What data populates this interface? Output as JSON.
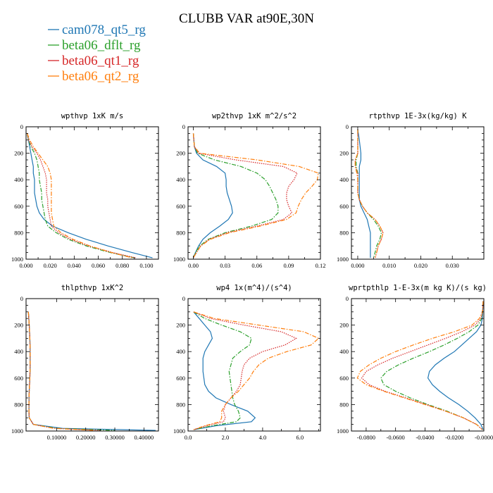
{
  "figure_title": "CLUBB VAR at90E,30N",
  "legend": [
    {
      "label": "cam078_qt5_rg",
      "color": "#1f77b4",
      "dash": "solid"
    },
    {
      "label": "beta06_dflt_rg",
      "color": "#2ca02c",
      "dash": "dashdot"
    },
    {
      "label": "beta06_qt1_rg",
      "color": "#d62728",
      "dash": "dot"
    },
    {
      "label": "beta06_qt2_rg",
      "color": "#ff7f0e",
      "dash": "dashdot"
    }
  ],
  "chart_data": [
    {
      "type": "line",
      "title": "wpthvp   1xK m/s",
      "xlim": [
        0,
        0.11
      ],
      "ylim": [
        1000,
        0
      ],
      "xticks": [
        "0.000",
        "0.020",
        "0.040",
        "0.060",
        "0.080",
        "0.100"
      ],
      "xtick_values": [
        0,
        0.02,
        0.04,
        0.06,
        0.08,
        0.1
      ],
      "yticks": [
        "0",
        "200",
        "400",
        "600",
        "800",
        "1000"
      ],
      "y": [
        50,
        100,
        150,
        200,
        250,
        300,
        350,
        400,
        450,
        500,
        550,
        600,
        650,
        700,
        750,
        800,
        850,
        900,
        950,
        990
      ],
      "series": [
        {
          "name": "cam078_qt5_rg",
          "x": [
            0.001,
            0.002,
            0.003,
            0.004,
            0.005,
            0.006,
            0.006,
            0.007,
            0.007,
            0.007,
            0.008,
            0.009,
            0.011,
            0.015,
            0.022,
            0.035,
            0.05,
            0.068,
            0.088,
            0.105
          ]
        },
        {
          "name": "beta06_dflt_rg",
          "x": [
            0.001,
            0.002,
            0.004,
            0.007,
            0.009,
            0.01,
            0.011,
            0.011,
            0.012,
            0.013,
            0.013,
            0.014,
            0.015,
            0.016,
            0.018,
            0.025,
            0.035,
            0.05,
            0.07,
            0.09
          ]
        },
        {
          "name": "beta06_qt1_rg",
          "x": [
            0.001,
            0.002,
            0.005,
            0.009,
            0.012,
            0.014,
            0.016,
            0.017,
            0.017,
            0.017,
            0.018,
            0.018,
            0.019,
            0.02,
            0.021,
            0.027,
            0.037,
            0.052,
            0.072,
            0.091
          ]
        },
        {
          "name": "beta06_qt2_rg",
          "x": [
            0.001,
            0.003,
            0.006,
            0.01,
            0.014,
            0.018,
            0.02,
            0.021,
            0.021,
            0.021,
            0.021,
            0.021,
            0.021,
            0.022,
            0.023,
            0.029,
            0.039,
            0.053,
            0.071,
            0.088
          ]
        }
      ]
    },
    {
      "type": "line",
      "title": "wp2thvp   1xK m^2/s^2",
      "xlim": [
        -0.005,
        0.12
      ],
      "ylim": [
        1000,
        0
      ],
      "xticks": [
        "0.00",
        "0.03",
        "0.06",
        "0.09",
        "0.12"
      ],
      "xtick_values": [
        0,
        0.03,
        0.06,
        0.09,
        0.12
      ],
      "yticks": [
        "0",
        "200",
        "400",
        "600",
        "800",
        "1000"
      ],
      "y": [
        50,
        150,
        200,
        250,
        300,
        350,
        400,
        450,
        500,
        550,
        600,
        650,
        700,
        750,
        800,
        850,
        900,
        950,
        990
      ],
      "series": [
        {
          "name": "cam078_qt5_rg",
          "x": [
            0.0,
            0.001,
            0.003,
            0.009,
            0.022,
            0.03,
            0.031,
            0.031,
            0.032,
            0.034,
            0.036,
            0.037,
            0.033,
            0.025,
            0.016,
            0.009,
            0.005,
            0.002,
            0.0
          ]
        },
        {
          "name": "beta06_dflt_rg",
          "x": [
            0.0,
            0.001,
            0.004,
            0.02,
            0.045,
            0.06,
            0.068,
            0.072,
            0.075,
            0.078,
            0.08,
            0.08,
            0.074,
            0.055,
            0.03,
            0.014,
            0.006,
            0.002,
            0.0
          ]
        },
        {
          "name": "beta06_qt1_rg",
          "x": [
            0.0,
            0.001,
            0.005,
            0.04,
            0.085,
            0.098,
            0.095,
            0.09,
            0.088,
            0.088,
            0.09,
            0.093,
            0.085,
            0.06,
            0.032,
            0.015,
            0.007,
            0.003,
            0.0
          ]
        },
        {
          "name": "beta06_qt2_rg",
          "x": [
            0.0,
            0.001,
            0.006,
            0.06,
            0.1,
            0.118,
            0.117,
            0.112,
            0.106,
            0.102,
            0.099,
            0.097,
            0.088,
            0.063,
            0.034,
            0.016,
            0.007,
            0.003,
            0.0
          ]
        }
      ]
    },
    {
      "type": "line",
      "title": "rtpthvp   1E-3x(kg/kg) K",
      "xlim": [
        -0.002,
        0.04
      ],
      "ylim": [
        1000,
        0
      ],
      "xticks": [
        "0.000",
        "0.010",
        "0.020",
        "0.030"
      ],
      "xtick_values": [
        0,
        0.01,
        0.02,
        0.03
      ],
      "yticks": [
        "0",
        "200",
        "400",
        "600",
        "800",
        "1000"
      ],
      "y": [
        20,
        100,
        200,
        250,
        300,
        350,
        400,
        450,
        500,
        550,
        600,
        650,
        700,
        750,
        800,
        850,
        900,
        950,
        990
      ],
      "series": [
        {
          "name": "cam078_qt5_rg",
          "x": [
            0.0,
            0.0005,
            0.001,
            0.001,
            0.0005,
            0.0005,
            0.0005,
            0.0005,
            0.0005,
            0.0005,
            0.001,
            0.002,
            0.003,
            0.0035,
            0.004,
            0.004,
            0.004,
            0.004,
            0.004
          ]
        },
        {
          "name": "beta06_dflt_rg",
          "x": [
            0.0,
            0.0,
            0.0,
            -0.0005,
            -0.0005,
            0.0,
            0.0,
            0.0,
            0.0,
            0.0005,
            0.0015,
            0.003,
            0.005,
            0.0065,
            0.0075,
            0.007,
            0.006,
            0.0055,
            0.005
          ]
        },
        {
          "name": "beta06_qt1_rg",
          "x": [
            0.0,
            0.0,
            0.0,
            -0.0008,
            -0.0008,
            0.0,
            0.0,
            0.0,
            0.0,
            0.0005,
            0.0015,
            0.003,
            0.0055,
            0.007,
            0.008,
            0.0075,
            0.0065,
            0.006,
            0.0055
          ]
        },
        {
          "name": "beta06_qt2_rg",
          "x": [
            0.0,
            0.0,
            0.0,
            -0.0008,
            -0.0008,
            -0.0003,
            0.0,
            0.0,
            0.0,
            0.0005,
            0.0015,
            0.003,
            0.0055,
            0.007,
            0.008,
            0.0075,
            0.0065,
            0.006,
            0.0055
          ]
        }
      ]
    },
    {
      "type": "line",
      "title": "thlpthvp   1xK^2",
      "xlim": [
        -0.005,
        0.45
      ],
      "ylim": [
        1000,
        0
      ],
      "xticks": [
        "0.10000",
        "0.20000",
        "0.30000",
        "0.40000"
      ],
      "xtick_values": [
        0.1,
        0.2,
        0.3,
        0.4
      ],
      "yticks": [
        "0",
        "200",
        "400",
        "600",
        "800",
        "1000"
      ],
      "y": [
        100,
        200,
        300,
        400,
        500,
        600,
        700,
        800,
        850,
        900,
        950,
        980,
        995
      ],
      "series": [
        {
          "name": "cam078_qt5_rg",
          "x": [
            0.003,
            0.006,
            0.008,
            0.009,
            0.009,
            0.008,
            0.006,
            0.005,
            0.005,
            0.006,
            0.02,
            0.12,
            0.44
          ]
        },
        {
          "name": "beta06_dflt_rg",
          "x": [
            0.003,
            0.006,
            0.008,
            0.009,
            0.009,
            0.008,
            0.006,
            0.005,
            0.005,
            0.006,
            0.02,
            0.1,
            0.3
          ]
        },
        {
          "name": "beta06_qt1_rg",
          "x": [
            0.003,
            0.006,
            0.008,
            0.009,
            0.009,
            0.008,
            0.006,
            0.005,
            0.005,
            0.006,
            0.02,
            0.09,
            0.25
          ]
        },
        {
          "name": "beta06_qt2_rg",
          "x": [
            0.003,
            0.006,
            0.008,
            0.009,
            0.009,
            0.008,
            0.006,
            0.005,
            0.005,
            0.006,
            0.02,
            0.09,
            0.23
          ]
        }
      ]
    },
    {
      "type": "line",
      "title": "wp4   1x(m^4)/(s^4)",
      "xlim": [
        0,
        7.1
      ],
      "ylim": [
        1000,
        0
      ],
      "xticks": [
        "0.0",
        "2.0",
        "4.0",
        "6.0"
      ],
      "xtick_values": [
        0,
        2,
        4,
        6
      ],
      "yticks": [
        "0",
        "200",
        "400",
        "600",
        "800",
        "1000"
      ],
      "y": [
        100,
        150,
        200,
        250,
        300,
        350,
        400,
        450,
        500,
        550,
        600,
        650,
        700,
        750,
        800,
        850,
        900,
        930,
        960,
        990
      ],
      "series": [
        {
          "name": "cam078_qt5_rg",
          "x": [
            0.3,
            0.6,
            0.9,
            1.2,
            1.3,
            1.1,
            0.9,
            0.8,
            0.8,
            0.8,
            0.85,
            0.9,
            1.1,
            1.5,
            2.3,
            3.2,
            3.6,
            3.4,
            1.5,
            0.3
          ]
        },
        {
          "name": "beta06_dflt_rg",
          "x": [
            0.3,
            0.9,
            1.8,
            2.8,
            3.4,
            3.3,
            2.8,
            2.4,
            2.3,
            2.2,
            2.25,
            2.3,
            2.35,
            2.4,
            2.5,
            2.7,
            2.8,
            2.6,
            1.3,
            0.3
          ]
        },
        {
          "name": "beta06_qt1_rg",
          "x": [
            0.3,
            1.2,
            3.0,
            5.0,
            5.8,
            5.2,
            4.0,
            3.3,
            3.0,
            2.9,
            2.85,
            2.8,
            2.6,
            2.3,
            2.0,
            1.9,
            2.0,
            1.9,
            1.0,
            0.3
          ]
        },
        {
          "name": "beta06_qt2_rg",
          "x": [
            0.3,
            1.4,
            3.8,
            6.2,
            7.0,
            6.6,
            5.3,
            4.3,
            3.8,
            3.5,
            3.3,
            3.0,
            2.7,
            2.3,
            2.0,
            1.8,
            1.8,
            1.7,
            0.9,
            0.3
          ]
        }
      ]
    },
    {
      "type": "line",
      "title": "wprtpthlp   1-E-3x(m kg K)/(s kg)",
      "xlim": [
        -0.09,
        0.0
      ],
      "ylim": [
        1000,
        0
      ],
      "xticks": [
        "-0.0800",
        "-0.0600",
        "-0.0400",
        "-0.0200",
        "-0.0000"
      ],
      "xtick_values": [
        -0.08,
        -0.06,
        -0.04,
        -0.02,
        0.0
      ],
      "yticks": [
        "0",
        "200",
        "400",
        "600",
        "800",
        "1000"
      ],
      "y": [
        20,
        100,
        150,
        200,
        250,
        300,
        350,
        400,
        450,
        500,
        550,
        600,
        650,
        700,
        750,
        800,
        850,
        900,
        950,
        990
      ],
      "series": [
        {
          "name": "cam078_qt5_rg",
          "x": [
            -0.0005,
            -0.0008,
            -0.001,
            -0.002,
            -0.005,
            -0.01,
            -0.015,
            -0.02,
            -0.027,
            -0.033,
            -0.037,
            -0.038,
            -0.035,
            -0.03,
            -0.024,
            -0.017,
            -0.011,
            -0.006,
            -0.002,
            -0.0005
          ]
        },
        {
          "name": "beta06_dflt_rg",
          "x": [
            -0.0005,
            -0.0008,
            -0.0015,
            -0.004,
            -0.01,
            -0.018,
            -0.027,
            -0.037,
            -0.048,
            -0.058,
            -0.066,
            -0.07,
            -0.068,
            -0.06,
            -0.05,
            -0.038,
            -0.025,
            -0.014,
            -0.005,
            -0.001
          ]
        },
        {
          "name": "beta06_qt1_rg",
          "x": [
            -0.0005,
            -0.0008,
            -0.002,
            -0.006,
            -0.015,
            -0.026,
            -0.038,
            -0.05,
            -0.062,
            -0.072,
            -0.08,
            -0.083,
            -0.078,
            -0.067,
            -0.053,
            -0.039,
            -0.026,
            -0.014,
            -0.005,
            -0.001
          ]
        },
        {
          "name": "beta06_qt2_rg",
          "x": [
            -0.0005,
            -0.001,
            -0.003,
            -0.008,
            -0.02,
            -0.035,
            -0.048,
            -0.06,
            -0.07,
            -0.078,
            -0.084,
            -0.086,
            -0.08,
            -0.068,
            -0.054,
            -0.04,
            -0.026,
            -0.014,
            -0.005,
            -0.001
          ]
        }
      ]
    }
  ]
}
